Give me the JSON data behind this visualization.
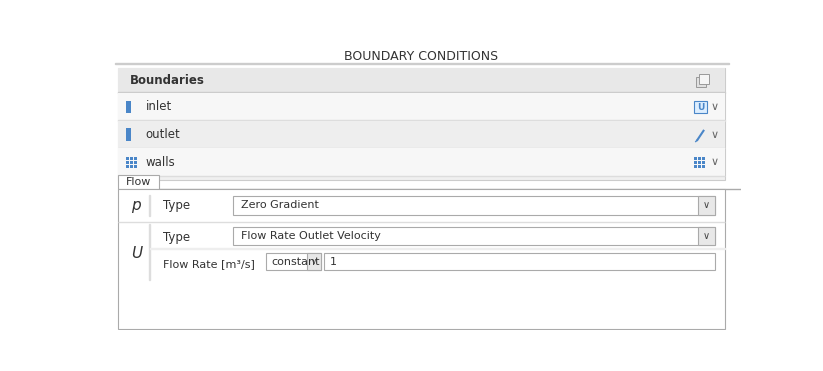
{
  "title": "BOUNDARY CONDITIONS",
  "bg_color": "#ffffff",
  "panel_bg": "#f0f0f0",
  "panel_border": "#cccccc",
  "row_bg_light": "#f7f7f7",
  "row_bg_dark": "#eeeeee",
  "text_color": "#333333",
  "blue_color": "#4a86c8",
  "tab_label": "Flow",
  "boundaries_label": "Boundaries",
  "boundary_rows": [
    "inlet",
    "outlet",
    "walls"
  ],
  "p_label": "p",
  "p_type_label": "Type",
  "p_type_value": "Zero Gradient",
  "u_label": "U",
  "u_type_label": "Type",
  "u_type_value": "Flow Rate Outlet Velocity",
  "flow_rate_label": "Flow Rate [m³/s]",
  "flow_rate_dropdown": "constant",
  "flow_rate_value": "1",
  "title_fontsize": 9,
  "label_fontsize": 8.5,
  "small_fontsize": 8
}
